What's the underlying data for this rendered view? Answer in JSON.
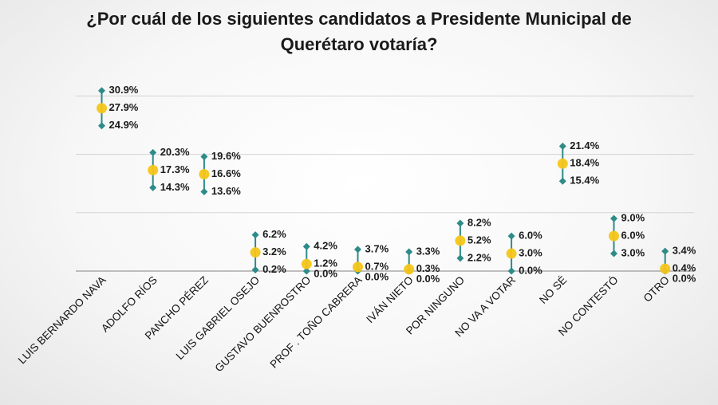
{
  "chart_data": {
    "type": "dot-range",
    "title": "¿Por cuál de los siguientes candidatos a Presidente Municipal de Querétaro votaría?",
    "ylim": [
      0,
      35
    ],
    "grid": true,
    "categories": [
      "LUIS BERNARDO NAVA",
      "ADOLFO RÍOS",
      "PANCHO PÉREZ",
      "LUIS GABRIEL OSEJO",
      "GUSTAVO BUENROSTRO",
      "PROF . TOÑO CABRERA",
      "IVÁN NIETO",
      "POR NINGUNO",
      "NO VA A VOTAR",
      "NO SÉ",
      "NO CONTESTÓ",
      "OTRO"
    ],
    "series": [
      {
        "name": "upper",
        "values": [
          30.9,
          20.3,
          19.6,
          6.2,
          4.2,
          3.7,
          3.3,
          8.2,
          6.0,
          21.4,
          9.0,
          3.4
        ],
        "labels": [
          "30.9%",
          "20.3%",
          "19.6%",
          "6.2%",
          "4.2%",
          "3.7%",
          "3.3%",
          "8.2%",
          "6.0%",
          "21.4%",
          "9.0%",
          "3.4%"
        ]
      },
      {
        "name": "estimate",
        "values": [
          27.9,
          17.3,
          16.6,
          3.2,
          1.2,
          0.7,
          0.3,
          5.2,
          3.0,
          18.4,
          6.0,
          0.4
        ],
        "labels": [
          "27.9%",
          "17.3%",
          "16.6%",
          "3.2%",
          "1.2%",
          "0.7%",
          "0.3%",
          "5.2%",
          "3.0%",
          "18.4%",
          "6.0%",
          "0.4%"
        ]
      },
      {
        "name": "lower",
        "values": [
          24.9,
          14.3,
          13.6,
          0.2,
          0.0,
          0.0,
          0.0,
          2.2,
          0.0,
          15.4,
          3.0,
          0.0
        ],
        "labels": [
          "24.9%",
          "14.3%",
          "13.6%",
          "0.2%",
          "0.0%",
          "0.0%",
          "0.0%",
          "2.2%",
          "0.0%",
          "15.4%",
          "3.0%",
          "0.0%"
        ]
      }
    ],
    "colors": {
      "range": "#2e8b88",
      "estimate": "#f5c518",
      "grid": "#d4d4d4",
      "axis": "#9a9a9a"
    }
  }
}
